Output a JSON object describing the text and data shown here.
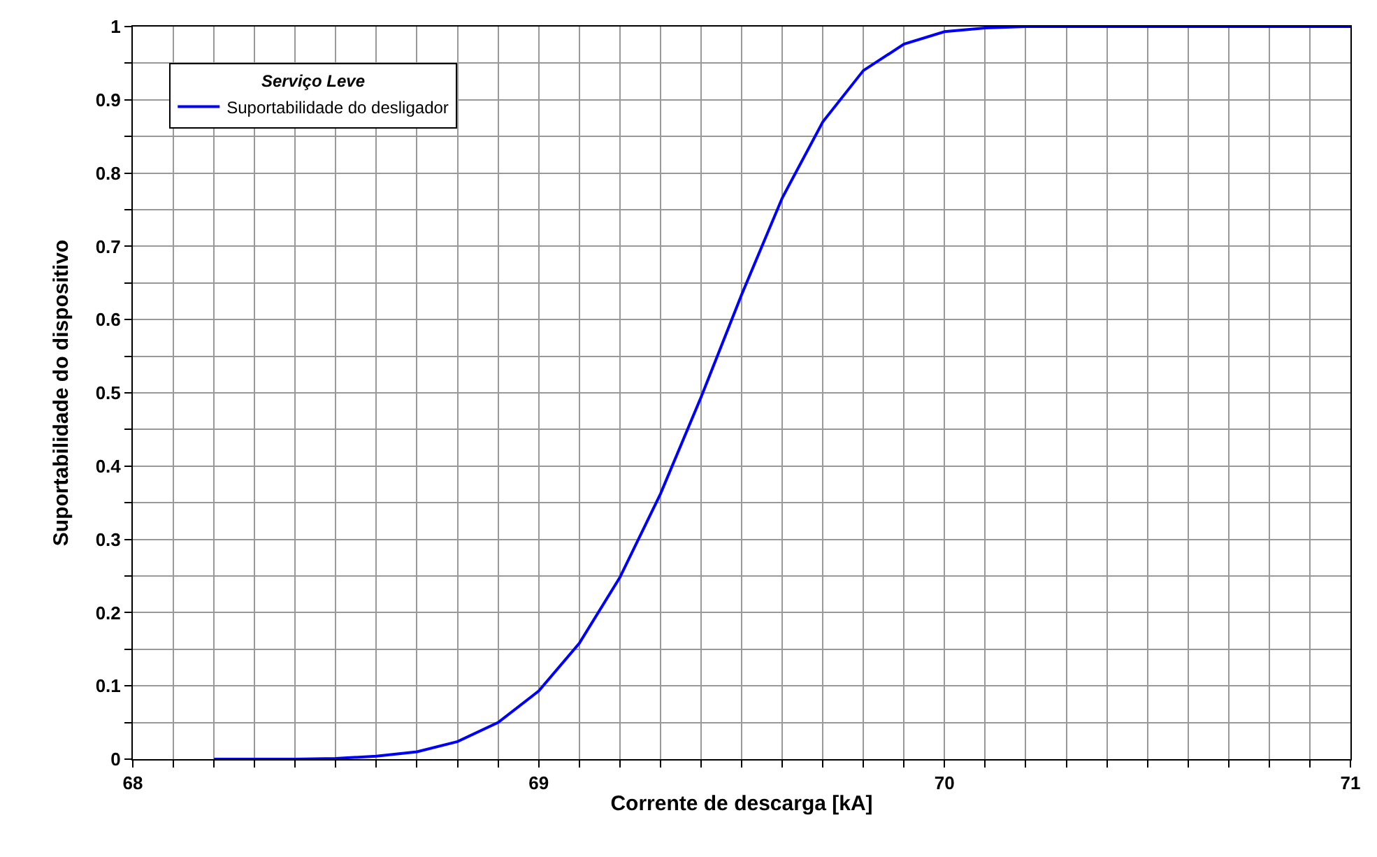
{
  "chart_data": {
    "type": "line",
    "xlabel": "Corrente de descarga [kA]",
    "ylabel": "Suportabilidade do dispositivo",
    "legend_title": "Serviço Leve",
    "x": [
      68.2,
      68.3,
      68.4,
      68.5,
      68.6,
      68.7,
      68.8,
      68.9,
      69.0,
      69.1,
      69.2,
      69.3,
      69.4,
      69.5,
      69.6,
      69.7,
      69.8,
      69.9,
      70.0,
      70.1,
      70.2,
      70.3,
      70.4,
      70.5,
      70.6,
      70.7,
      70.8,
      70.9,
      71.0
    ],
    "series": [
      {
        "name": "Suportabilidade do desligador",
        "color": "#0000ff",
        "values": [
          0,
          0,
          0,
          0.001,
          0.004,
          0.01,
          0.024,
          0.05,
          0.093,
          0.158,
          0.248,
          0.362,
          0.494,
          0.634,
          0.766,
          0.87,
          0.94,
          0.976,
          0.993,
          0.998,
          1,
          1,
          1,
          1,
          1,
          1,
          1,
          1,
          1
        ]
      }
    ],
    "xlim": [
      68,
      71
    ],
    "xticks": [
      68,
      {
        "value": 68.1,
        "label": null
      },
      {
        "value": 68.2,
        "label": null
      },
      {
        "value": 68.3,
        "label": null
      },
      {
        "value": 68.4,
        "label": null
      },
      {
        "value": 68.5,
        "label": null
      },
      {
        "value": 68.6,
        "label": null
      },
      {
        "value": 68.7,
        "label": null
      },
      {
        "value": 68.8,
        "label": null
      },
      {
        "value": 68.9,
        "label": null
      },
      69,
      {
        "value": 69.1,
        "label": null
      },
      {
        "value": 69.2,
        "label": null
      },
      {
        "value": 69.3,
        "label": null
      },
      {
        "value": 69.4,
        "label": null
      },
      {
        "value": 69.5,
        "label": null
      },
      {
        "value": 69.6,
        "label": null
      },
      {
        "value": 69.7,
        "label": null
      },
      {
        "value": 69.8,
        "label": null
      },
      {
        "value": 69.9,
        "label": null
      },
      70,
      {
        "value": 70.1,
        "label": null
      },
      {
        "value": 70.2,
        "label": null
      },
      {
        "value": 70.3,
        "label": null
      },
      {
        "value": 70.4,
        "label": null
      },
      {
        "value": 70.5,
        "label": null
      },
      {
        "value": 70.6,
        "label": null
      },
      {
        "value": 70.7,
        "label": null
      },
      {
        "value": 70.8,
        "label": null
      },
      {
        "value": 70.9,
        "label": null
      },
      71
    ],
    "ylim": [
      0,
      1
    ],
    "yticks": [
      0,
      {
        "value": 0.05,
        "label": null
      },
      0.1,
      {
        "value": 0.15,
        "label": null
      },
      0.2,
      {
        "value": 0.25,
        "label": null
      },
      0.3,
      {
        "value": 0.35,
        "label": null
      },
      0.4,
      {
        "value": 0.45,
        "label": null
      },
      0.5,
      {
        "value": 0.55,
        "label": null
      },
      0.6,
      {
        "value": 0.65,
        "label": null
      },
      0.7,
      {
        "value": 0.75,
        "label": null
      },
      0.8,
      {
        "value": 0.85,
        "label": null
      },
      0.9,
      {
        "value": 0.95,
        "label": null
      },
      1
    ],
    "grid": true,
    "legend": "top left",
    "marker": "none",
    "line_style": "solid"
  }
}
